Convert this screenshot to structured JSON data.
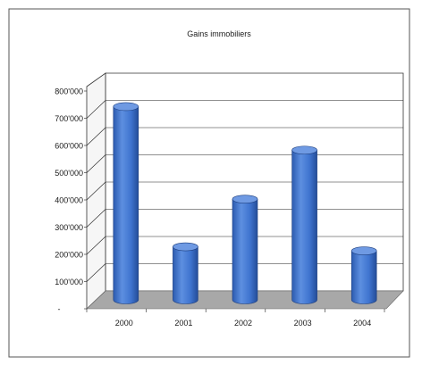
{
  "chart_data": {
    "type": "bar",
    "title": "Gains immobiliers",
    "categories": [
      "2000",
      "2001",
      "2002",
      "2003",
      "2004"
    ],
    "values": [
      710000,
      195000,
      370000,
      550000,
      180000
    ],
    "y_ticks": [
      "800'000",
      "700'000",
      "600'000",
      "500'000",
      "400'000",
      "300'000",
      "200'000",
      "100'000",
      "-"
    ],
    "ylim": [
      0,
      800000
    ],
    "grid": true,
    "legend": "none",
    "xlabel": "",
    "ylabel": "",
    "bar_color": "#3f74cf",
    "bar_top_color": "#6f9ae3",
    "floor_color": "#a8a8a8"
  }
}
